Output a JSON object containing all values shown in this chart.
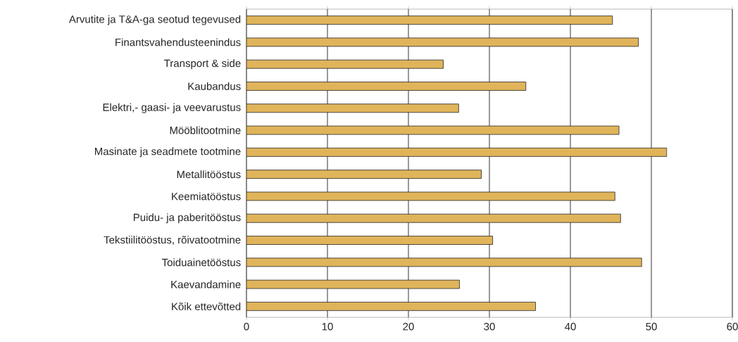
{
  "chart_data": {
    "type": "bar",
    "orientation": "horizontal",
    "categories": [
      "Arvutite ja T&A-ga seotud tegevused",
      "Finantsvahendusteenindus",
      "Transport & side",
      "Kaubandus",
      "Elektri,- gaasi- ja veevarustus",
      "Mööblitootmine",
      "Masinate ja seadmete tootmine",
      "Metallitööstus",
      "Keemiatööstus",
      "Puidu- ja paberitööstus",
      "Tekstiilitööstus, rõivatootmine",
      "Toiduainetööstus",
      "Kaevandamine",
      "Kõik ettevõtted"
    ],
    "values": [
      45.2,
      48.4,
      24.3,
      34.5,
      26.2,
      46.0,
      51.9,
      29.0,
      45.5,
      46.2,
      30.4,
      48.8,
      26.3,
      35.7
    ],
    "color": "#e0b45a",
    "xlim": [
      0,
      60
    ],
    "xticks": [
      0,
      10,
      20,
      30,
      40,
      50,
      60
    ],
    "grid": "x"
  }
}
